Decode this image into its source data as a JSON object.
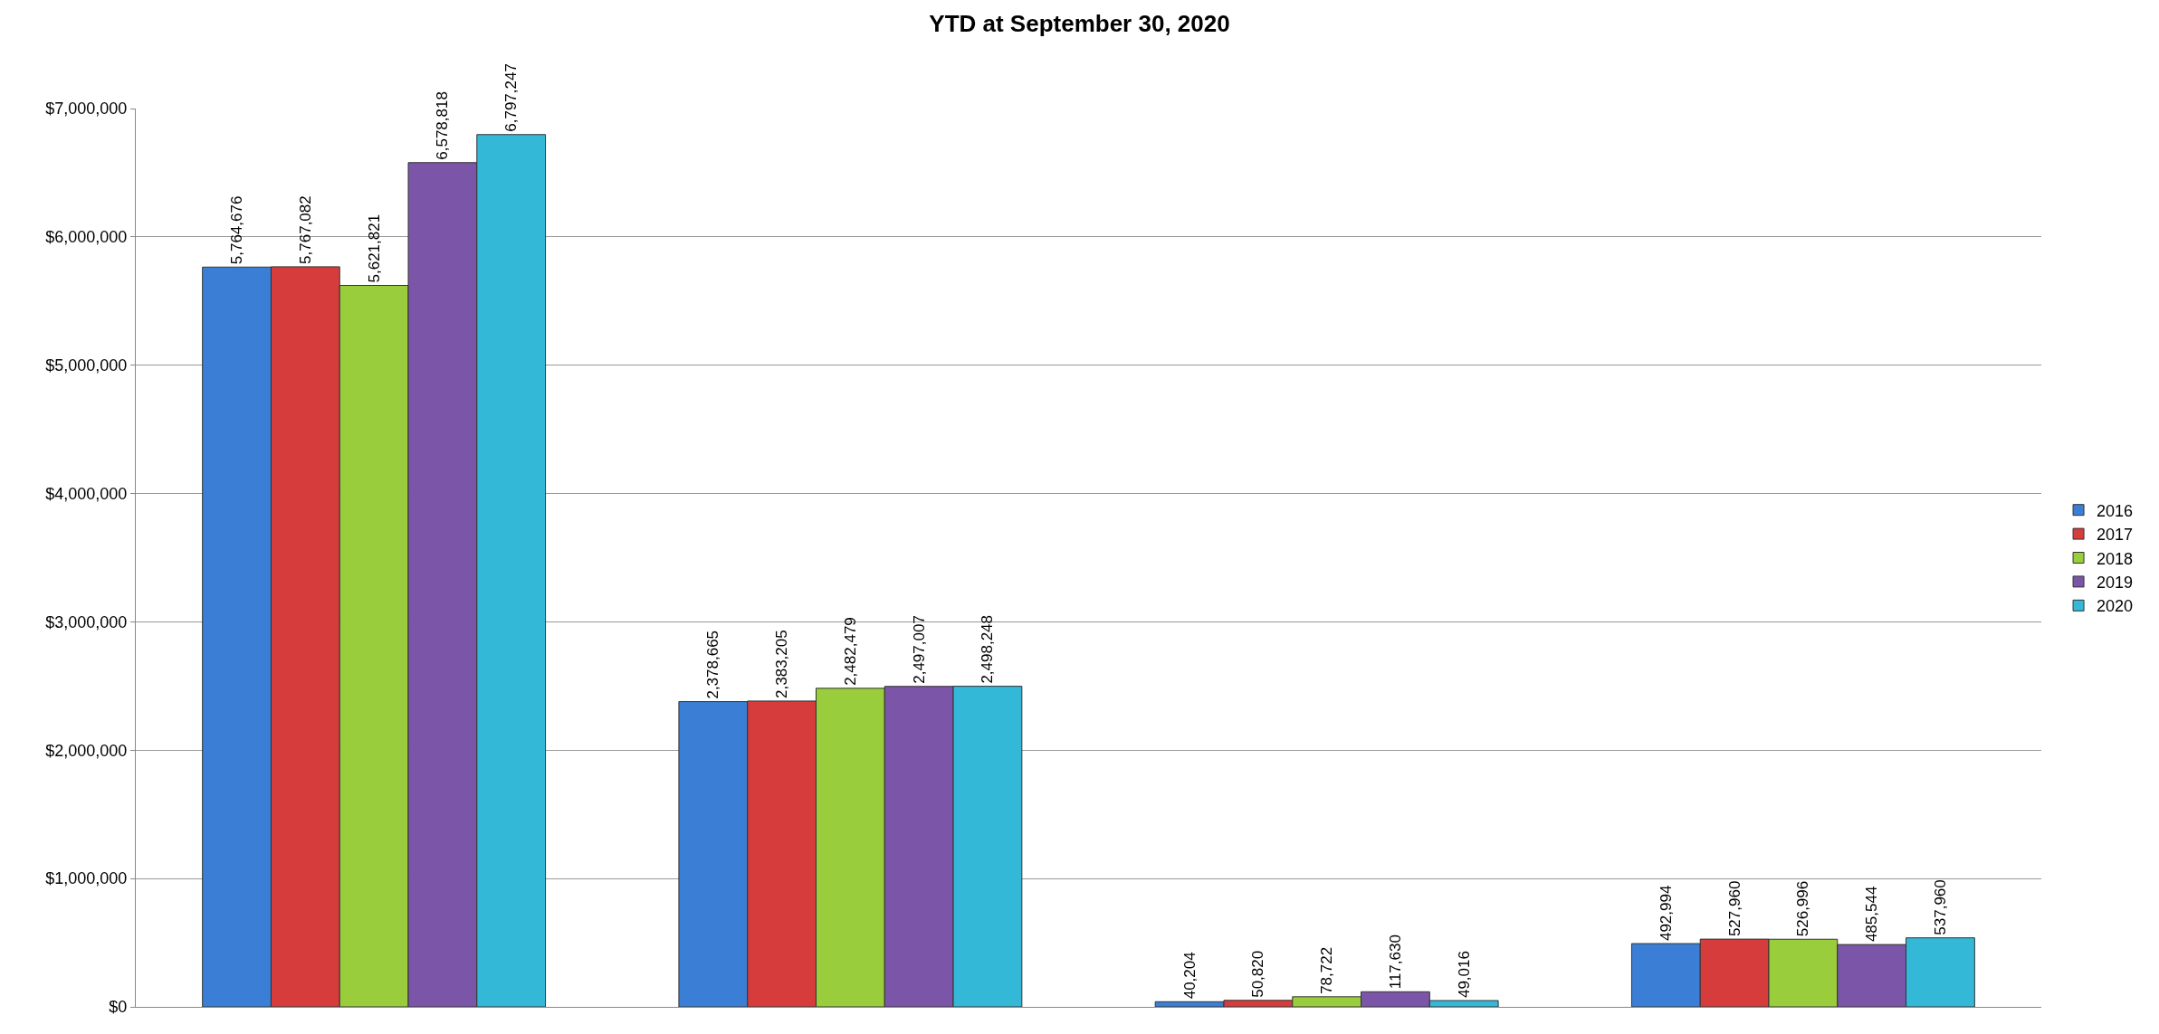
{
  "chart_data": {
    "type": "bar",
    "title": "YTD at September 30, 2020",
    "categories": [
      null,
      null,
      null,
      null
    ],
    "series": [
      {
        "name": "2016",
        "color": "#3a7fd5",
        "values": [
          5764676,
          2378665,
          40204,
          492994
        ],
        "value_labels": [
          "5,764,676",
          "2,378,665",
          "40,204",
          "492,994"
        ]
      },
      {
        "name": "2017",
        "color": "#d63c3c",
        "values": [
          5767082,
          2383205,
          50820,
          527960
        ],
        "value_labels": [
          "5,767,082",
          "2,383,205",
          "50,820",
          "527,960"
        ]
      },
      {
        "name": "2018",
        "color": "#9acd3c",
        "values": [
          5621821,
          2482479,
          78722,
          526996
        ],
        "value_labels": [
          "5,621,821",
          "2,482,479",
          "78,722",
          "526,996"
        ]
      },
      {
        "name": "2019",
        "color": "#7b56a8",
        "values": [
          6578818,
          2497007,
          117630,
          485544
        ],
        "value_labels": [
          "6,578,818",
          "2,497,007",
          "117,630",
          "485,544"
        ]
      },
      {
        "name": "2020",
        "color": "#34b8d8",
        "values": [
          6797247,
          2498248,
          49016,
          537960
        ],
        "value_labels": [
          "6,797,247",
          "2,498,248",
          "49,016",
          "537,960"
        ]
      }
    ],
    "ylim": [
      0,
      7000000
    ],
    "yticks": [
      {
        "value": 0,
        "label": "$0"
      },
      {
        "value": 1000000,
        "label": "$1,000,000"
      },
      {
        "value": 2000000,
        "label": "$2,000,000"
      },
      {
        "value": 3000000,
        "label": "$3,000,000"
      },
      {
        "value": 4000000,
        "label": "$4,000,000"
      },
      {
        "value": 5000000,
        "label": "$5,000,000"
      },
      {
        "value": 6000000,
        "label": "$6,000,000"
      },
      {
        "value": 7000000,
        "label": "$7,000,000"
      }
    ],
    "grid": "y",
    "legend": "right"
  }
}
